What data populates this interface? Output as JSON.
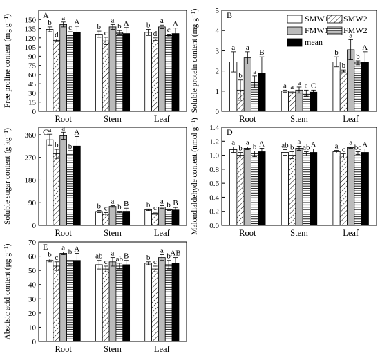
{
  "colors": {
    "mean_fill": "#000000",
    "fmw1_fill": "#bbbbbb",
    "frame": "#000000"
  },
  "legend": [
    {
      "name": "SMW1",
      "pattern": "white"
    },
    {
      "name": "SMW2",
      "pattern": "diagonal-hatch"
    },
    {
      "name": "FMW1",
      "pattern": "gray"
    },
    {
      "name": "FMW2",
      "pattern": "horizontal-lines"
    },
    {
      "name": "mean",
      "pattern": "black"
    }
  ],
  "chart_data": [
    {
      "type": "bar",
      "panel": "A",
      "ylabel": "Free proline content (mg g⁻¹)",
      "categories": [
        "Root",
        "Stem",
        "Leaf"
      ],
      "ylim": [
        0,
        165
      ],
      "yticks": [
        0,
        15,
        30,
        45,
        60,
        75,
        90,
        105,
        120,
        135,
        150
      ],
      "series": [
        {
          "name": "SMW1",
          "values": [
            134,
            126,
            129
          ],
          "errors": [
            4,
            5,
            5
          ],
          "letters": [
            "b",
            "b",
            "b"
          ]
        },
        {
          "name": "SMW2",
          "values": [
            116,
            115,
            118
          ],
          "errors": [
            2,
            6,
            2
          ],
          "letters": [
            "d",
            "c",
            "d"
          ]
        },
        {
          "name": "FMW1",
          "values": [
            142,
            138,
            138
          ],
          "errors": [
            4,
            4,
            3
          ],
          "letters": [
            "a",
            "a",
            "a"
          ]
        },
        {
          "name": "FMW2",
          "values": [
            125,
            129,
            124
          ],
          "errors": [
            5,
            3,
            2
          ],
          "letters": [
            "c",
            "b",
            "c"
          ]
        },
        {
          "name": "mean",
          "values": [
            129,
            127,
            127
          ],
          "errors": [
            10,
            10,
            9
          ],
          "letters": [
            "A",
            "A",
            "A"
          ]
        }
      ]
    },
    {
      "type": "bar",
      "panel": "B",
      "ylabel": "Soluble protein content (mg g⁻¹)",
      "categories": [
        "Root",
        "Stem",
        "Leaf"
      ],
      "ylim": [
        0,
        5
      ],
      "yticks": [
        0,
        1,
        2,
        3,
        4,
        5
      ],
      "series": [
        {
          "name": "SMW1",
          "values": [
            2.45,
            1.0,
            2.45
          ],
          "errors": [
            0.5,
            0.05,
            0.25
          ],
          "letters": [
            "a",
            "a",
            "b"
          ]
        },
        {
          "name": "SMW2",
          "values": [
            1.05,
            0.95,
            2.0
          ],
          "errors": [
            0.5,
            0.05,
            0.05
          ],
          "letters": [
            "b",
            "a",
            "b"
          ]
        },
        {
          "name": "FMW1",
          "values": [
            2.65,
            1.05,
            3.05
          ],
          "errors": [
            0.3,
            0.15,
            0.5
          ],
          "letters": [
            "a",
            "a",
            "a"
          ]
        },
        {
          "name": "FMW2",
          "values": [
            1.45,
            0.9,
            2.4
          ],
          "errors": [
            0.3,
            0.15,
            0.1
          ],
          "letters": [
            "a",
            "a",
            "b"
          ]
        },
        {
          "name": "mean",
          "values": [
            1.9,
            0.95,
            2.45
          ],
          "errors": [
            0.8,
            0.1,
            0.5
          ],
          "letters": [
            "B",
            "C",
            "A"
          ]
        }
      ]
    },
    {
      "type": "bar",
      "panel": "C",
      "ylabel": "Soluble sugar content (g kg⁻¹)",
      "categories": [
        "Root",
        "Stem",
        "Leaf"
      ],
      "ylim": [
        0,
        390
      ],
      "yticks": [
        0,
        90,
        180,
        270,
        360
      ],
      "series": [
        {
          "name": "SMW1",
          "values": [
            340,
            55,
            62
          ],
          "errors": [
            22,
            4,
            3
          ],
          "letters": [
            "a",
            "b",
            "b"
          ]
        },
        {
          "name": "SMW2",
          "values": [
            284,
            44,
            48
          ],
          "errors": [
            18,
            7,
            4
          ],
          "letters": [
            "b",
            "c",
            "c"
          ]
        },
        {
          "name": "FMW1",
          "values": [
            356,
            75,
            73
          ],
          "errors": [
            14,
            3,
            5
          ],
          "letters": [
            "a",
            "a",
            "a"
          ]
        },
        {
          "name": "FMW2",
          "values": [
            282,
            53,
            62
          ],
          "errors": [
            15,
            3,
            3
          ],
          "letters": [
            "b",
            "b",
            "b"
          ]
        },
        {
          "name": "mean",
          "values": [
            315,
            56,
            61
          ],
          "errors": [
            38,
            12,
            10
          ],
          "letters": [
            "A",
            "B",
            "B"
          ]
        }
      ]
    },
    {
      "type": "bar",
      "panel": "D",
      "ylabel": "Malondialdehyde content (nmol g⁻¹)",
      "categories": [
        "Root",
        "Stem",
        "Leaf"
      ],
      "ylim": [
        0,
        1.4
      ],
      "yticks": [
        0.0,
        0.2,
        0.4,
        0.6,
        0.8,
        1.0,
        1.2,
        1.4
      ],
      "series": [
        {
          "name": "SMW1",
          "values": [
            1.08,
            1.04,
            1.05
          ],
          "errors": [
            0.04,
            0.04,
            0.02
          ],
          "letters": [
            "a",
            "ab",
            "a"
          ]
        },
        {
          "name": "SMW2",
          "values": [
            1.0,
            1.0,
            0.99
          ],
          "errors": [
            0.04,
            0.05,
            0.03
          ],
          "letters": [
            "b",
            "b",
            "c"
          ]
        },
        {
          "name": "FMW1",
          "values": [
            1.1,
            1.1,
            1.11
          ],
          "errors": [
            0.02,
            0.03,
            0.01
          ],
          "letters": [
            "a",
            "a",
            "a"
          ]
        },
        {
          "name": "FMW2",
          "values": [
            1.02,
            1.02,
            1.03
          ],
          "errors": [
            0.04,
            0.03,
            0.02
          ],
          "letters": [
            "b",
            "ab",
            "bc"
          ]
        },
        {
          "name": "mean",
          "values": [
            1.05,
            1.04,
            1.04
          ],
          "errors": [
            0.05,
            0.05,
            0.05
          ],
          "letters": [
            "A",
            "A",
            "A"
          ]
        }
      ]
    },
    {
      "type": "bar",
      "panel": "E",
      "ylabel": "Abscisic acid content (μg g⁻¹)",
      "categories": [
        "Root",
        "Stem",
        "Leaf"
      ],
      "ylim": [
        0,
        70
      ],
      "yticks": [
        0,
        10,
        20,
        30,
        40,
        50,
        60,
        70
      ],
      "series": [
        {
          "name": "SMW1",
          "values": [
            57,
            54,
            55
          ],
          "errors": [
            1,
            3,
            1
          ],
          "letters": [
            "b",
            "ab",
            "b"
          ]
        },
        {
          "name": "SMW2",
          "values": [
            53,
            51,
            51
          ],
          "errors": [
            3,
            2,
            2
          ],
          "letters": [
            "c",
            "c",
            "c"
          ]
        },
        {
          "name": "FMW1",
          "values": [
            62,
            56,
            59
          ],
          "errors": [
            1,
            3,
            2
          ],
          "letters": [
            "a",
            "a",
            "a"
          ]
        },
        {
          "name": "FMW2",
          "values": [
            57,
            53,
            54
          ],
          "errors": [
            3,
            2,
            3
          ],
          "letters": [
            "b",
            "ab",
            "b"
          ]
        },
        {
          "name": "mean",
          "values": [
            57,
            54,
            55
          ],
          "errors": [
            5,
            3,
            4
          ],
          "letters": [
            "A",
            "B",
            "AB"
          ]
        }
      ]
    }
  ]
}
